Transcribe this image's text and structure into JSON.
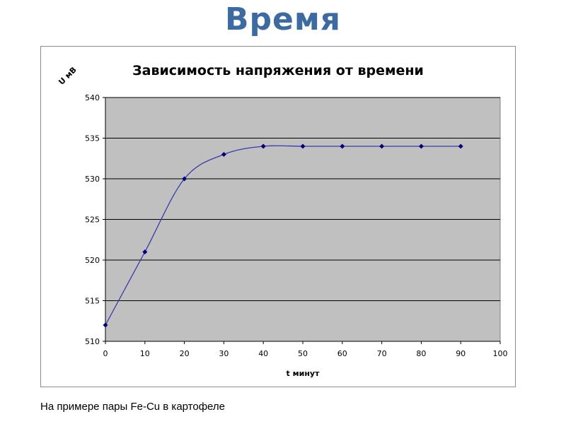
{
  "slide": {
    "title": "Время",
    "caption": "На примере пары Fe-Cu в картофеле"
  },
  "chart_data": {
    "type": "line",
    "title": "Зависимость напряжения от времени",
    "xlabel": "t минут",
    "ylabel": "U мВ",
    "xlim": [
      0,
      100
    ],
    "ylim": [
      510,
      540
    ],
    "xticks": [
      0,
      10,
      20,
      30,
      40,
      50,
      60,
      70,
      80,
      90,
      100
    ],
    "yticks": [
      510,
      515,
      520,
      525,
      530,
      535,
      540
    ],
    "grid": true,
    "smooth": true,
    "legend": "none",
    "colors": {
      "plot_area": "#c0c0c0",
      "series_line": "#3a3aa8",
      "markers": "#000080",
      "gridlines": "#000000"
    },
    "series": [
      {
        "x": [
          0,
          10,
          20,
          30,
          40,
          50,
          60,
          70,
          80,
          90
        ],
        "y": [
          512,
          521,
          530,
          533,
          534,
          534,
          534,
          534,
          534,
          534
        ]
      }
    ]
  }
}
